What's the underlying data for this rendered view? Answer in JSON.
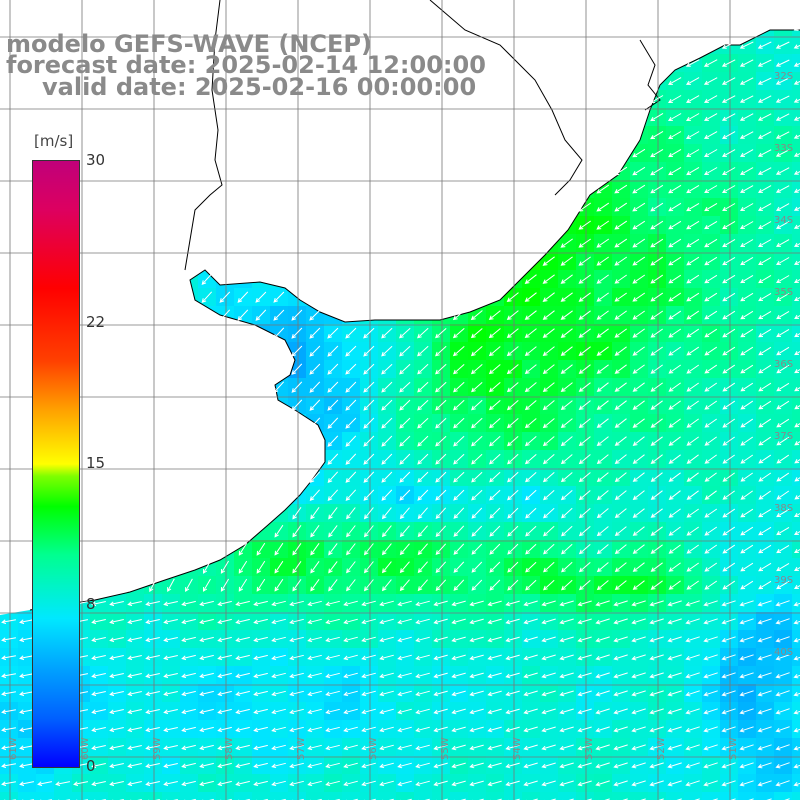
{
  "header": {
    "line1": "modelo GEFS-WAVE (NCEP)",
    "line2": "forecast date: 2025-02-14 12:00:00",
    "line3": "valid date: 2025-02-16 00:00:00"
  },
  "colorbar": {
    "units": "[m/s]",
    "min": 0,
    "max": 30,
    "ticks": [
      {
        "value": 30,
        "label": "30"
      },
      {
        "value": 22,
        "label": "22"
      },
      {
        "value": 15,
        "label": "15"
      },
      {
        "value": 8,
        "label": "8"
      },
      {
        "value": 0,
        "label": "0"
      }
    ]
  },
  "map": {
    "field": "wind speed with direction arrows",
    "background_color": "#ffffff",
    "land_color": "#ffffff",
    "coastline_color": "#000000",
    "grid_color": "#777777",
    "arrow_color": "#ffffff",
    "latitude_labels": [
      "32S",
      "33S",
      "34S",
      "35S",
      "36S",
      "37S",
      "38S",
      "39S",
      "40S"
    ],
    "longitude_labels": [
      "61W",
      "60W",
      "59W",
      "58W",
      "57W",
      "56W",
      "55W",
      "54W",
      "53W",
      "52W",
      "51W"
    ]
  }
}
